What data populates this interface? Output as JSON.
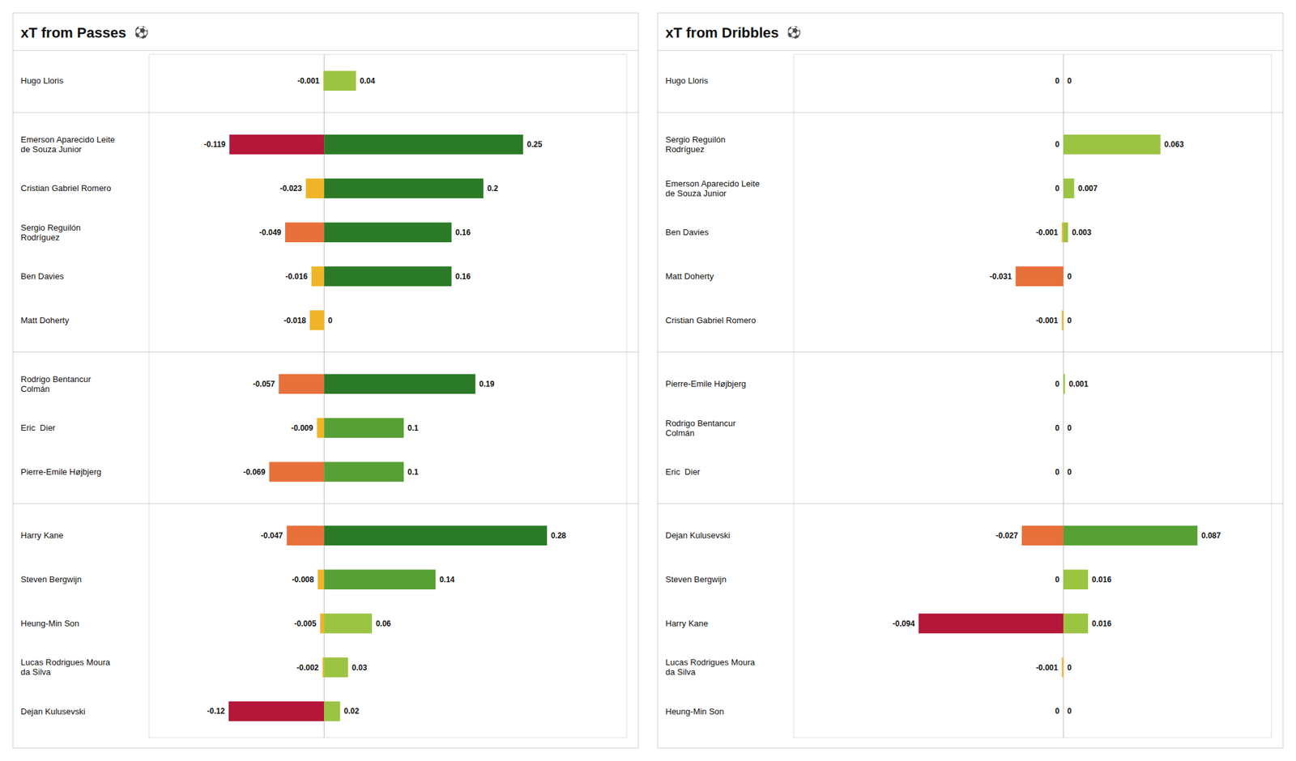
{
  "chart_data": [
    {
      "type": "bar",
      "orientation": "horizontal",
      "title": "xT from Passes",
      "annotations": [
        {
          "text": "⚽",
          "color": "navy"
        }
      ],
      "categories": [
        "Hugo Lloris",
        "Emerson Aparecido Leite\nde Souza Junior",
        "Cristian Gabriel Romero",
        "Sergio Reguilón\nRodríguez",
        "Ben Davies",
        "Matt Doherty",
        "Rodrigo Bentancur\nColmán",
        "Eric  Dier",
        "Pierre-Emile Højbjerg",
        "Harry Kane",
        "Steven Bergwijn",
        "Heung-Min Son",
        "Lucas Rodrigues Moura\nda Silva",
        "Dejan Kulusevski"
      ],
      "groups": [
        0,
        1,
        1,
        1,
        1,
        1,
        2,
        2,
        2,
        3,
        3,
        3,
        3,
        3
      ],
      "series": [
        {
          "values": [
            -0.001,
            -0.119,
            -0.023,
            -0.049,
            -0.016,
            -0.018,
            -0.057,
            -0.009,
            -0.069,
            -0.047,
            -0.008,
            -0.005,
            -0.002,
            -0.12
          ],
          "colors": [
            "#f0b429",
            "#b5173a",
            "#f0b429",
            "#e8703a",
            "#f0b429",
            "#f0b429",
            "#e8703a",
            "#f0b429",
            "#e8703a",
            "#e8703a",
            "#f0b429",
            "#f0b429",
            "#f0b429",
            "#b5173a"
          ]
        },
        {
          "values": [
            0.04,
            0.25,
            0.2,
            0.16,
            0.16,
            0,
            0.19,
            0.1,
            0.1,
            0.28,
            0.14,
            0.06,
            0.03,
            0.02
          ],
          "colors": [
            "#9bc442",
            "#2a7a27",
            "#2a7a27",
            "#2a7a27",
            "#2a7a27",
            "#9bc442",
            "#2a7a27",
            "#57a035",
            "#57a035",
            "#2a7a27",
            "#57a035",
            "#9bc442",
            "#9bc442",
            "#9bc442"
          ]
        }
      ],
      "xlim": [
        -0.22,
        0.38
      ],
      "tick_labels": false,
      "data_labels": true,
      "grid": false
    },
    {
      "type": "bar",
      "orientation": "horizontal",
      "title": "xT from Dribbles",
      "annotations": [
        {
          "text": "⚽",
          "color": "navy"
        }
      ],
      "categories": [
        "Hugo Lloris",
        "Sergio Reguilón\nRodríguez",
        "Emerson Aparecido Leite\nde Souza Junior",
        "Ben Davies",
        "Matt Doherty",
        "Cristian Gabriel Romero",
        "Pierre-Emile Højbjerg",
        "Rodrigo Bentancur\nColmán",
        "Eric  Dier",
        "Dejan Kulusevski",
        "Steven Bergwijn",
        "Harry Kane",
        "Lucas Rodrigues Moura\nda Silva",
        "Heung-Min Son"
      ],
      "groups": [
        0,
        1,
        1,
        1,
        1,
        1,
        2,
        2,
        2,
        3,
        3,
        3,
        3,
        3
      ],
      "series": [
        {
          "values": [
            0,
            0,
            0,
            -0.001,
            -0.031,
            -0.001,
            0,
            0,
            0,
            -0.027,
            0,
            -0.094,
            -0.001,
            0
          ],
          "colors": [
            "#f0b429",
            "#f0b429",
            "#f0b429",
            "#f0b429",
            "#e8703a",
            "#f0b429",
            "#f0b429",
            "#f0b429",
            "#f0b429",
            "#e8703a",
            "#f0b429",
            "#b5173a",
            "#f0b429",
            "#f0b429"
          ]
        },
        {
          "values": [
            0,
            0.063,
            0.007,
            0.003,
            0,
            0,
            0.001,
            0,
            0,
            0.087,
            0.016,
            0.016,
            0,
            0
          ],
          "colors": [
            "#9bc442",
            "#9bc442",
            "#9bc442",
            "#9bc442",
            "#9bc442",
            "#9bc442",
            "#9bc442",
            "#9bc442",
            "#9bc442",
            "#57a035",
            "#9bc442",
            "#9bc442",
            "#9bc442",
            "#9bc442"
          ]
        }
      ],
      "xlim": [
        -0.175,
        0.135
      ],
      "tick_labels": false,
      "data_labels": true,
      "grid": false
    }
  ]
}
